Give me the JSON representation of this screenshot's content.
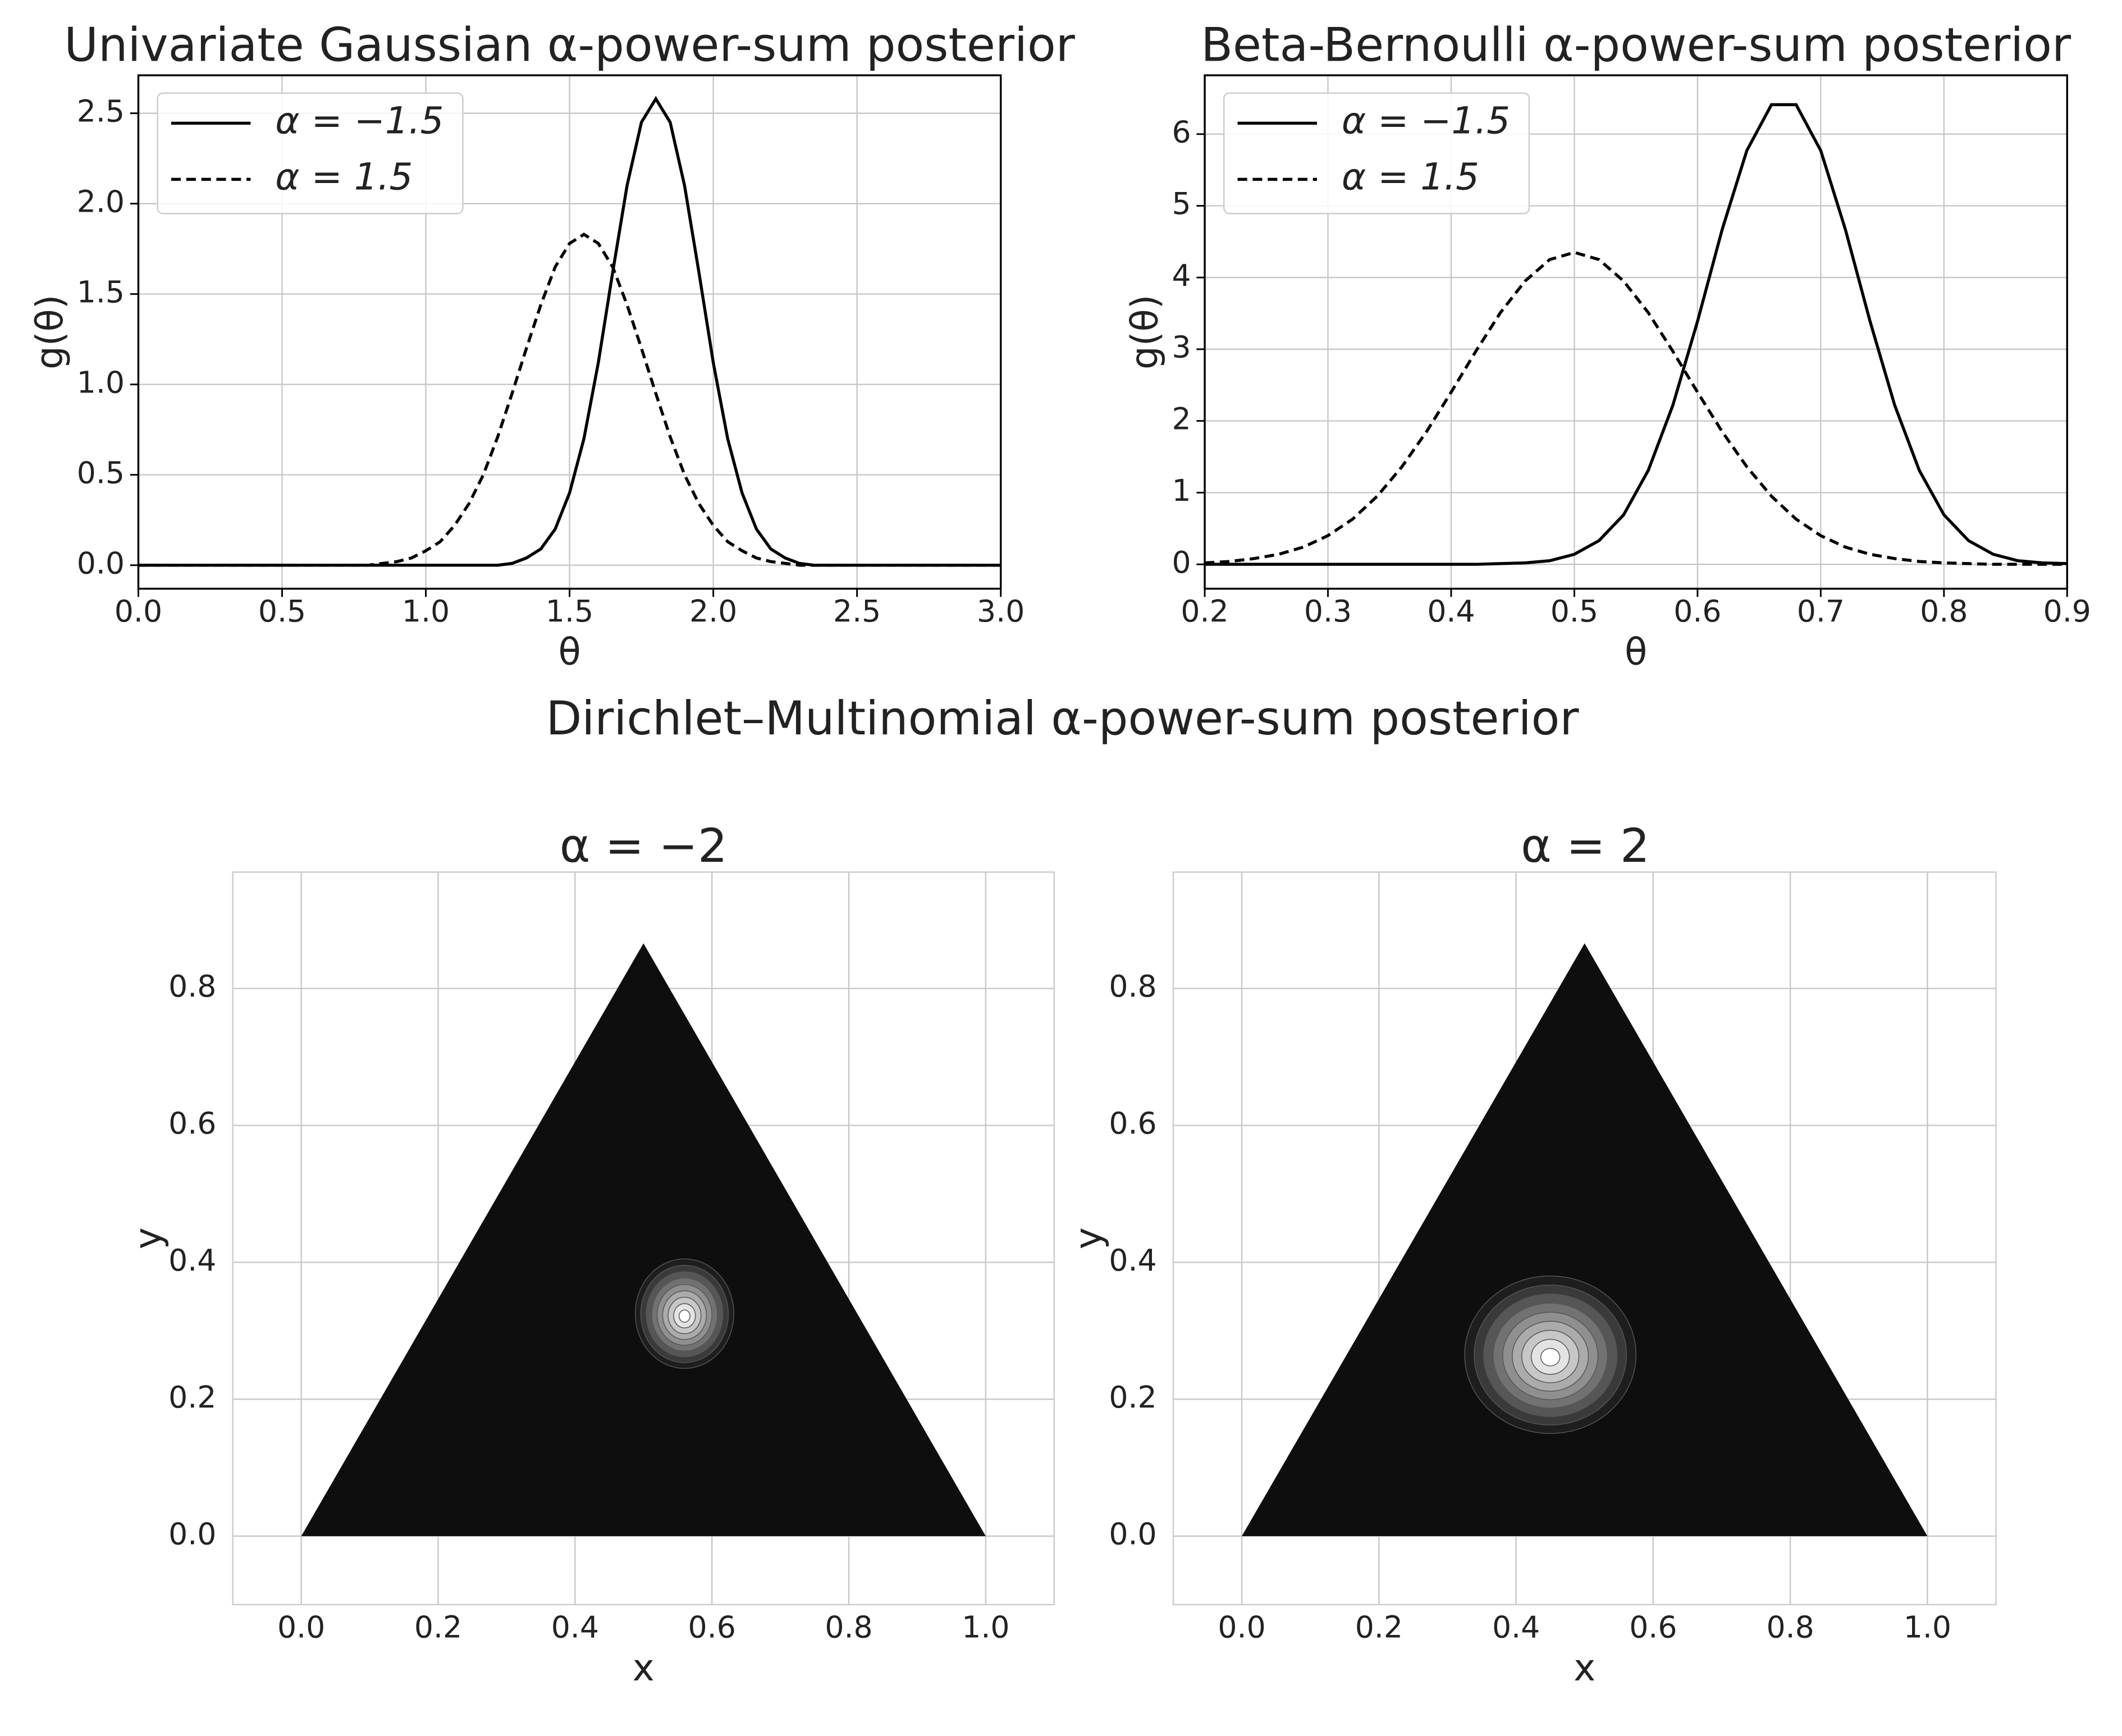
{
  "suptitle": "Dirichlet–Multinomial α-power-sum posterior",
  "chart_data": [
    {
      "type": "line",
      "title": "Univariate Gaussian α-power-sum posterior",
      "x_label": "θ",
      "y_label": "g(θ)",
      "x": [
        0,
        0.05,
        0.1,
        0.15,
        0.2,
        0.25,
        0.3,
        0.35,
        0.4,
        0.45,
        0.5,
        0.55,
        0.6,
        0.65,
        0.7,
        0.75,
        0.8,
        0.85,
        0.9,
        0.95,
        1,
        1.05,
        1.1,
        1.15,
        1.2,
        1.25,
        1.3,
        1.35,
        1.4,
        1.45,
        1.5,
        1.55,
        1.6,
        1.65,
        1.7,
        1.75,
        1.8,
        1.85,
        1.9,
        1.95,
        2,
        2.05,
        2.1,
        2.15,
        2.2,
        2.25,
        2.3,
        2.35,
        2.4,
        2.45,
        2.5,
        2.55,
        2.6,
        2.65,
        2.7,
        2.75,
        2.8,
        2.85,
        2.9,
        2.95,
        3
      ],
      "series": [
        {
          "name": "α = −1.5",
          "color": "#000000",
          "style": "solid",
          "values": [
            0,
            0,
            0,
            0,
            0,
            0,
            0,
            0,
            0,
            0,
            0,
            0,
            0,
            0,
            0,
            0,
            0,
            0,
            0,
            0,
            0,
            0,
            0,
            0,
            0,
            0,
            0.01,
            0.04,
            0.09,
            0.2,
            0.4,
            0.7,
            1.12,
            1.62,
            2.1,
            2.45,
            2.58,
            2.45,
            2.1,
            1.62,
            1.12,
            0.7,
            0.4,
            0.2,
            0.09,
            0.04,
            0.01,
            0,
            0,
            0,
            0,
            0,
            0,
            0,
            0,
            0,
            0,
            0,
            0,
            0,
            0
          ]
        },
        {
          "name": "α = 1.5",
          "color": "#000000",
          "style": "dashed",
          "values": [
            0,
            0,
            0,
            0,
            0,
            0,
            0,
            0,
            0,
            0,
            0,
            0,
            0,
            0,
            0,
            0,
            0,
            0.01,
            0.02,
            0.04,
            0.08,
            0.13,
            0.22,
            0.34,
            0.5,
            0.71,
            0.95,
            1.2,
            1.44,
            1.65,
            1.78,
            1.83,
            1.78,
            1.65,
            1.44,
            1.2,
            0.95,
            0.71,
            0.5,
            0.34,
            0.22,
            0.13,
            0.08,
            0.04,
            0.02,
            0.01,
            0,
            0,
            0,
            0,
            0,
            0,
            0,
            0,
            0,
            0,
            0,
            0,
            0,
            0,
            0
          ]
        }
      ],
      "xlim": [
        0,
        3
      ],
      "ylim": [
        -0.13,
        2.71
      ],
      "xticks": [
        {
          "value": 0,
          "label": "0.0"
        },
        0.5,
        {
          "value": 1,
          "label": "1.0"
        },
        1.5,
        {
          "value": 2,
          "label": "2.0"
        },
        2.5,
        {
          "value": 3,
          "label": "3.0"
        }
      ],
      "yticks": [
        {
          "value": 0,
          "label": "0.0"
        },
        0.5,
        {
          "value": 1,
          "label": "1.0"
        },
        1.5,
        {
          "value": 2,
          "label": "2.0"
        },
        2.5
      ],
      "grid": true,
      "legend": "upper left"
    },
    {
      "type": "line",
      "title": "Beta-Bernoulli α-power-sum posterior",
      "x_label": "θ",
      "y_label": "g(θ)",
      "x": [
        0.2,
        0.22,
        0.24,
        0.26,
        0.28,
        0.3,
        0.32,
        0.34,
        0.36,
        0.38,
        0.4,
        0.42,
        0.44,
        0.46,
        0.48,
        0.5,
        0.52,
        0.54,
        0.56,
        0.58,
        0.6,
        0.62,
        0.64,
        0.66,
        0.68,
        0.7,
        0.72,
        0.74,
        0.76,
        0.78,
        0.8,
        0.82,
        0.84,
        0.86,
        0.88,
        0.9
      ],
      "series": [
        {
          "name": "α = −1.5",
          "color": "#000000",
          "style": "solid",
          "values": [
            0,
            0,
            0,
            0,
            0,
            0,
            0,
            0,
            0,
            0,
            0,
            0,
            0.01,
            0.02,
            0.05,
            0.14,
            0.33,
            0.69,
            1.31,
            2.22,
            3.39,
            4.67,
            5.77,
            6.41,
            6.41,
            5.77,
            4.67,
            3.39,
            2.22,
            1.31,
            0.69,
            0.33,
            0.14,
            0.05,
            0.02,
            0.01
          ]
        },
        {
          "name": "α = 1.5",
          "color": "#000000",
          "style": "dashed",
          "values": [
            0.02,
            0.04,
            0.08,
            0.14,
            0.24,
            0.4,
            0.63,
            0.95,
            1.36,
            1.85,
            2.4,
            2.97,
            3.51,
            3.95,
            4.25,
            4.35,
            4.25,
            3.95,
            3.51,
            2.97,
            2.4,
            1.85,
            1.36,
            0.95,
            0.63,
            0.4,
            0.24,
            0.14,
            0.08,
            0.04,
            0.02,
            0.01,
            0,
            0,
            0,
            0
          ]
        }
      ],
      "xlim": [
        0.2,
        0.9
      ],
      "ylim": [
        -0.34,
        6.82
      ],
      "xticks": [
        0.2,
        0.3,
        0.4,
        0.5,
        0.6,
        0.7,
        0.8,
        0.9
      ],
      "yticks": [
        0,
        1,
        2,
        3,
        4,
        5,
        6
      ],
      "grid": true,
      "legend": "upper left"
    },
    {
      "type": "contour",
      "title": "α = −2",
      "x_label": "x",
      "y_label": "y",
      "simplex": [
        [
          0,
          0
        ],
        [
          1,
          0
        ],
        [
          0.5,
          0.866
        ]
      ],
      "fill": "#0e0e0e",
      "peak": [
        0.56,
        0.325
      ],
      "spread": [
        0.072,
        0.08
      ],
      "xlim": [
        -0.1,
        1.1
      ],
      "ylim": [
        -0.1,
        0.97
      ],
      "xticks": [
        {
          "value": 0,
          "label": "0.0"
        },
        0.2,
        0.4,
        0.6,
        0.8,
        {
          "value": 1,
          "label": "1.0"
        }
      ],
      "yticks": [
        {
          "value": 0,
          "label": "0.0"
        },
        0.2,
        0.4,
        0.6,
        0.8
      ],
      "grid": true
    },
    {
      "type": "contour",
      "title": "α = 2",
      "x_label": "x",
      "y_label": "y",
      "simplex": [
        [
          0,
          0
        ],
        [
          1,
          0
        ],
        [
          0.5,
          0.866
        ]
      ],
      "fill": "#0e0e0e",
      "peak": [
        0.45,
        0.265
      ],
      "spread": [
        0.125,
        0.115
      ],
      "xlim": [
        -0.1,
        1.1
      ],
      "ylim": [
        -0.1,
        0.97
      ],
      "xticks": [
        {
          "value": 0,
          "label": "0.0"
        },
        0.2,
        0.4,
        0.6,
        0.8,
        {
          "value": 1,
          "label": "1.0"
        }
      ],
      "yticks": [
        {
          "value": 0,
          "label": "0.0"
        },
        0.2,
        0.4,
        0.6,
        0.8
      ],
      "grid": true
    }
  ]
}
